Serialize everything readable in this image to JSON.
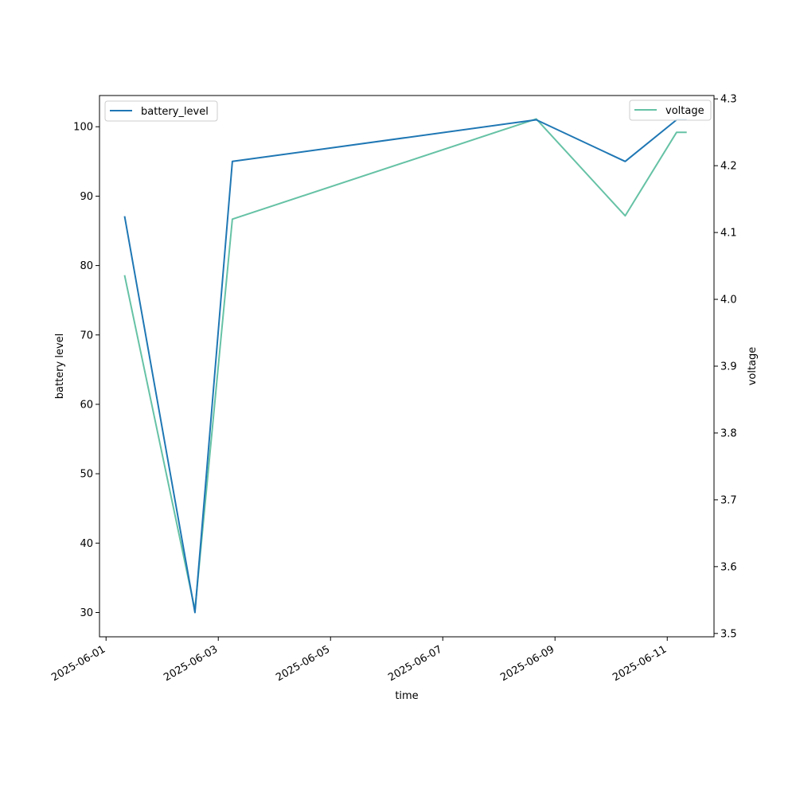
{
  "chart_data": {
    "type": "line",
    "title": "",
    "xlabel": "time",
    "ylabel_left": "battery level",
    "ylabel_right": "voltage",
    "xlim": [
      "2025-05-31T21:12",
      "2025-06-11T20:00"
    ],
    "ylim_left": [
      26.5,
      104.5
    ],
    "ylim_right": [
      3.495,
      4.305
    ],
    "x_ticks": [
      "2025-06-01",
      "2025-06-03",
      "2025-06-05",
      "2025-06-07",
      "2025-06-09",
      "2025-06-11"
    ],
    "y_ticks_left": [
      30,
      40,
      50,
      60,
      70,
      80,
      90,
      100
    ],
    "y_ticks_right": [
      3.5,
      3.6,
      3.7,
      3.8,
      3.9,
      4.0,
      4.1,
      4.2,
      4.3
    ],
    "grid": false,
    "series": [
      {
        "name": "battery_level",
        "axis": "left",
        "color": "#1f77b4",
        "legend": "top-left",
        "points": [
          {
            "x": "2025-06-01T08:00",
            "y": 87
          },
          {
            "x": "2025-06-02T14:00",
            "y": 30
          },
          {
            "x": "2025-06-03T06:00",
            "y": 95
          },
          {
            "x": "2025-06-08T16:00",
            "y": 101
          },
          {
            "x": "2025-06-10T06:00",
            "y": 95
          },
          {
            "x": "2025-06-11T04:00",
            "y": 101
          },
          {
            "x": "2025-06-11T08:00",
            "y": 101
          }
        ]
      },
      {
        "name": "voltage",
        "axis": "right",
        "color": "#66c2a5",
        "legend": "top-right",
        "points": [
          {
            "x": "2025-06-01T08:00",
            "y": 4.035
          },
          {
            "x": "2025-06-02T14:00",
            "y": 3.535
          },
          {
            "x": "2025-06-03T06:00",
            "y": 4.12
          },
          {
            "x": "2025-06-08T16:00",
            "y": 4.27
          },
          {
            "x": "2025-06-10T06:00",
            "y": 4.125
          },
          {
            "x": "2025-06-11T04:00",
            "y": 4.25
          },
          {
            "x": "2025-06-11T08:00",
            "y": 4.25
          }
        ]
      }
    ]
  }
}
